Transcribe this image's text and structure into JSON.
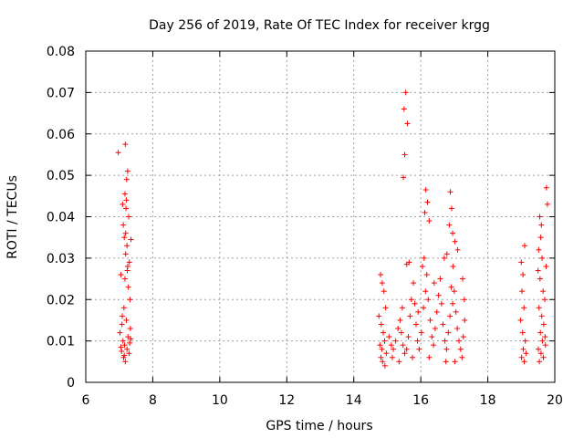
{
  "chart_data": {
    "type": "scatter",
    "title": "Day 256 of 2019, Rate Of TEC Index for receiver krgg",
    "xlabel": "GPS time / hours",
    "ylabel": "ROTI / TECUs",
    "xlim": [
      6,
      20
    ],
    "ylim": [
      0,
      0.08
    ],
    "xticks": [
      "6",
      "8",
      "10",
      "12",
      "14",
      "16",
      "18",
      "20"
    ],
    "yticks": [
      "0",
      "0.01",
      "0.02",
      "0.03",
      "0.04",
      "0.05",
      "0.06",
      "0.07",
      "0.08"
    ],
    "grid": true,
    "marker": "+",
    "color": "#ff0000",
    "series": [
      {
        "name": "ROTI",
        "points": [
          [
            6.97,
            0.0555
          ],
          [
            7.18,
            0.0575
          ],
          [
            7.05,
            0.026
          ],
          [
            7.15,
            0.035
          ],
          [
            7.2,
            0.042
          ],
          [
            7.22,
            0.049
          ],
          [
            7.25,
            0.051
          ],
          [
            7.17,
            0.0455
          ],
          [
            7.21,
            0.044
          ],
          [
            7.28,
            0.04
          ],
          [
            7.35,
            0.0345
          ],
          [
            7.1,
            0.043
          ],
          [
            7.12,
            0.038
          ],
          [
            7.3,
            0.029
          ],
          [
            7.19,
            0.031
          ],
          [
            7.24,
            0.027
          ],
          [
            7.27,
            0.023
          ],
          [
            7.32,
            0.02
          ],
          [
            7.14,
            0.018
          ],
          [
            7.08,
            0.014
          ],
          [
            7.02,
            0.012
          ],
          [
            7.11,
            0.01
          ],
          [
            7.16,
            0.009
          ],
          [
            7.23,
            0.008
          ],
          [
            7.29,
            0.007
          ],
          [
            7.05,
            0.0085
          ],
          [
            7.13,
            0.006
          ],
          [
            7.18,
            0.005
          ],
          [
            7.26,
            0.011
          ],
          [
            7.33,
            0.013
          ],
          [
            7.09,
            0.016
          ],
          [
            7.21,
            0.015
          ],
          [
            7.31,
            0.0095
          ],
          [
            7.07,
            0.0075
          ],
          [
            7.15,
            0.0065
          ],
          [
            7.34,
            0.0105
          ],
          [
            7.19,
            0.036
          ],
          [
            7.23,
            0.033
          ],
          [
            7.25,
            0.028
          ],
          [
            7.17,
            0.025
          ],
          [
            15.55,
            0.07
          ],
          [
            15.5,
            0.066
          ],
          [
            15.6,
            0.0625
          ],
          [
            15.52,
            0.055
          ],
          [
            15.48,
            0.0495
          ],
          [
            15.58,
            0.0285
          ],
          [
            15.65,
            0.029
          ],
          [
            16.15,
            0.0465
          ],
          [
            16.2,
            0.0435
          ],
          [
            16.12,
            0.041
          ],
          [
            16.25,
            0.039
          ],
          [
            16.1,
            0.03
          ],
          [
            16.05,
            0.028
          ],
          [
            16.88,
            0.046
          ],
          [
            16.92,
            0.042
          ],
          [
            16.85,
            0.038
          ],
          [
            16.95,
            0.036
          ],
          [
            17.02,
            0.034
          ],
          [
            16.78,
            0.031
          ],
          [
            16.7,
            0.03
          ],
          [
            17.1,
            0.032
          ],
          [
            17.25,
            0.025
          ],
          [
            17.3,
            0.02
          ],
          [
            14.8,
            0.026
          ],
          [
            14.85,
            0.024
          ],
          [
            14.9,
            0.022
          ],
          [
            14.95,
            0.018
          ],
          [
            14.75,
            0.016
          ],
          [
            14.82,
            0.014
          ],
          [
            14.88,
            0.012
          ],
          [
            14.92,
            0.01
          ],
          [
            14.78,
            0.009
          ],
          [
            14.84,
            0.008
          ],
          [
            14.97,
            0.007
          ],
          [
            14.81,
            0.006
          ],
          [
            14.86,
            0.005
          ],
          [
            14.93,
            0.004
          ],
          [
            15.05,
            0.011
          ],
          [
            15.12,
            0.009
          ],
          [
            15.18,
            0.008
          ],
          [
            15.25,
            0.01
          ],
          [
            15.32,
            0.013
          ],
          [
            15.38,
            0.015
          ],
          [
            15.42,
            0.012
          ],
          [
            15.47,
            0.009
          ],
          [
            15.52,
            0.007
          ],
          [
            15.58,
            0.008
          ],
          [
            15.63,
            0.011
          ],
          [
            15.68,
            0.016
          ],
          [
            15.72,
            0.02
          ],
          [
            15.78,
            0.024
          ],
          [
            15.82,
            0.019
          ],
          [
            15.86,
            0.014
          ],
          [
            15.9,
            0.01
          ],
          [
            15.95,
            0.008
          ],
          [
            16.02,
            0.012
          ],
          [
            16.08,
            0.018
          ],
          [
            16.14,
            0.022
          ],
          [
            16.18,
            0.026
          ],
          [
            16.22,
            0.02
          ],
          [
            16.28,
            0.015
          ],
          [
            16.33,
            0.011
          ],
          [
            16.38,
            0.009
          ],
          [
            16.43,
            0.013
          ],
          [
            16.48,
            0.017
          ],
          [
            16.53,
            0.021
          ],
          [
            16.58,
            0.025
          ],
          [
            16.62,
            0.019
          ],
          [
            16.66,
            0.014
          ],
          [
            16.72,
            0.01
          ],
          [
            16.77,
            0.008
          ],
          [
            16.82,
            0.012
          ],
          [
            16.87,
            0.016
          ],
          [
            16.91,
            0.023
          ],
          [
            16.96,
            0.028
          ],
          [
            17.0,
            0.022
          ],
          [
            17.05,
            0.017
          ],
          [
            17.09,
            0.013
          ],
          [
            17.14,
            0.01
          ],
          [
            17.19,
            0.008
          ],
          [
            17.23,
            0.006
          ],
          [
            17.27,
            0.011
          ],
          [
            17.31,
            0.015
          ],
          [
            15.15,
            0.006
          ],
          [
            15.35,
            0.005
          ],
          [
            15.75,
            0.006
          ],
          [
            16.25,
            0.006
          ],
          [
            16.75,
            0.005
          ],
          [
            17.02,
            0.005
          ],
          [
            15.45,
            0.018
          ],
          [
            15.92,
            0.017
          ],
          [
            16.4,
            0.024
          ],
          [
            16.95,
            0.019
          ],
          [
            19.0,
            0.029
          ],
          [
            19.05,
            0.026
          ],
          [
            19.1,
            0.033
          ],
          [
            19.02,
            0.022
          ],
          [
            19.08,
            0.018
          ],
          [
            18.98,
            0.015
          ],
          [
            19.04,
            0.012
          ],
          [
            19.12,
            0.01
          ],
          [
            19.06,
            0.008
          ],
          [
            19.01,
            0.006
          ],
          [
            19.14,
            0.007
          ],
          [
            19.09,
            0.005
          ],
          [
            19.55,
            0.04
          ],
          [
            19.6,
            0.038
          ],
          [
            19.58,
            0.035
          ],
          [
            19.52,
            0.032
          ],
          [
            19.62,
            0.03
          ],
          [
            19.5,
            0.027
          ],
          [
            19.56,
            0.025
          ],
          [
            19.65,
            0.022
          ],
          [
            19.7,
            0.02
          ],
          [
            19.53,
            0.018
          ],
          [
            19.61,
            0.016
          ],
          [
            19.67,
            0.014
          ],
          [
            19.57,
            0.012
          ],
          [
            19.63,
            0.01
          ],
          [
            19.72,
            0.009
          ],
          [
            19.51,
            0.008
          ],
          [
            19.59,
            0.007
          ],
          [
            19.66,
            0.006
          ],
          [
            19.54,
            0.005
          ],
          [
            19.71,
            0.011
          ],
          [
            19.75,
            0.047
          ],
          [
            19.78,
            0.043
          ],
          [
            19.74,
            0.028
          ]
        ]
      }
    ]
  }
}
